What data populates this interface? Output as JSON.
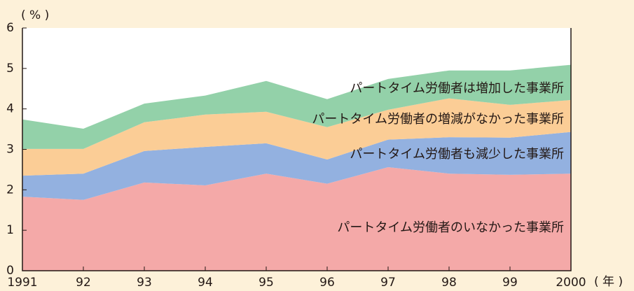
{
  "chart_data": {
    "type": "stacked_area",
    "ylabel": "( % )",
    "xlabel": "( 年 )",
    "categories": [
      "1991",
      "92",
      "93",
      "94",
      "95",
      "96",
      "97",
      "98",
      "99",
      "2000"
    ],
    "series": [
      {
        "name": "パートタイム労働者のいなかった事業所",
        "color": "#f4a9a8",
        "values": [
          1.83,
          1.75,
          2.18,
          2.11,
          2.4,
          2.15,
          2.56,
          2.4,
          2.37,
          2.4
        ]
      },
      {
        "name": "パートタイム労働者も減少した事業所",
        "color": "#93b1e0",
        "values": [
          0.52,
          0.65,
          0.78,
          0.95,
          0.75,
          0.6,
          0.68,
          0.9,
          0.92,
          1.03
        ]
      },
      {
        "name": "パートタイム労働者の増減がなかった事業所",
        "color": "#fbcd96",
        "values": [
          0.66,
          0.61,
          0.71,
          0.8,
          0.78,
          0.8,
          0.74,
          0.96,
          0.81,
          0.79
        ]
      },
      {
        "name": "パートタイム労働者は増加した事業所",
        "color": "#93d1a9",
        "values": [
          0.73,
          0.5,
          0.46,
          0.47,
          0.76,
          0.69,
          0.76,
          0.69,
          0.85,
          0.87
        ]
      }
    ],
    "ylim": [
      0,
      6
    ],
    "yticks": [
      0,
      1,
      2,
      3,
      4,
      5,
      6
    ]
  }
}
